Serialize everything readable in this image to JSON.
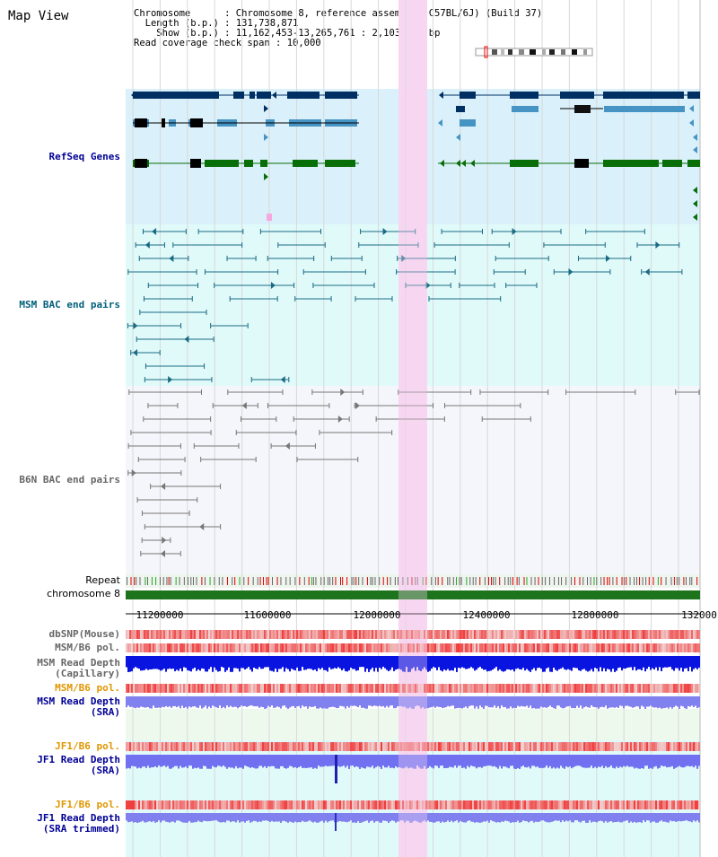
{
  "page": {
    "title": "Map View",
    "info": {
      "chromosome_label": "Chromosome",
      "chromosome_value": "Chromosome 8, reference assembly (C57BL/6J) (Build 37)",
      "length_label": "Length (b.p.)",
      "length_value": "131,738,871",
      "show_label": "Show (b.p.)",
      "show_value": "11,162,453-13,265,761 : 2,103,309 bp",
      "coverage_label": "Read coverage check span",
      "coverage_value": "10,000"
    }
  },
  "tracks": {
    "refseq": "RefSeq Genes",
    "msm_bac": "MSM BAC end pairs",
    "b6n_bac": "B6N BAC end pairs",
    "repeat": "Repeat",
    "chromosome": "chromosome 8",
    "dbsnp": "dbSNP(Mouse)",
    "msm_b6_pol_1": "MSM/B6 pol.",
    "msm_depth_cap_1": "MSM Read Depth",
    "msm_depth_cap_2": "(Capillary)",
    "msm_b6_pol_2": "MSM/B6 pol.",
    "msm_depth_sra_1": "MSM Read Depth",
    "msm_depth_sra_2": "(SRA)",
    "jf1_pol_1": "JF1/B6 pol.",
    "jf1_depth_sra_1": "JF1 Read Depth",
    "jf1_depth_sra_2": "(SRA)",
    "jf1_pol_2": "JF1/B6 pol.",
    "jf1_depth_trim_1": "JF1 Read Depth",
    "jf1_depth_trim_2": "(SRA trimmed)"
  },
  "axis": {
    "ticks": [
      "11200000",
      "11600000",
      "12000000",
      "12400000",
      "12800000",
      "132000"
    ]
  },
  "colors": {
    "refseq_bg": "#daf0fa",
    "bac_bg": "#e0fafa",
    "b6n_bg": "#f5f6fb",
    "highlight": "#f7d6f1",
    "grid": "#d8d8d8",
    "gene_dark": "#002f63",
    "gene_mid": "#4694c3",
    "gene_green": "#086e08",
    "msm_line": "#1a6a84",
    "b6n_line": "#777777",
    "chromosome": "#1d741d",
    "label_blue": "#000096",
    "label_teal": "#005f7a",
    "label_orange": "#e09600",
    "label_gray": "#666666"
  }
}
